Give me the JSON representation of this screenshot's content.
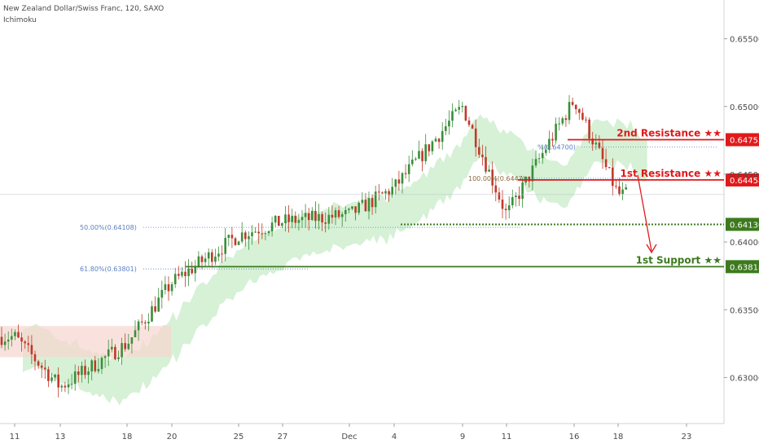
{
  "header": {
    "title": "New Zealand Dollar/Swiss Franc, 120, SAXO",
    "indicator": "Ichimoku"
  },
  "colors": {
    "up": "#3a8f3a",
    "down": "#c0392b",
    "resistance": "#e0191b",
    "support": "#3d7a1e",
    "fib": "#5b7fc4",
    "cloud_bull": "#c8ecc8",
    "cloud_bear": "#f6d5cf"
  },
  "chart_data": {
    "type": "candlestick",
    "ylim": [
      0.6275,
      0.6575
    ],
    "y_ticks": [
      "0.65500",
      "0.65000",
      "0.64500",
      "0.64000",
      "0.63500",
      "0.63000"
    ],
    "x_ticks": [
      "11",
      "13",
      "18",
      "20",
      "25",
      "27",
      "Dec",
      "4",
      "9",
      "11",
      "16",
      "18",
      "23"
    ],
    "price_levels": [
      {
        "name": "2nd Resistance ★★",
        "price_label": "0.64755",
        "value": 0.64755
      },
      {
        "name": "1st Resistance ★★",
        "price_label": "0.64458",
        "value": 0.64458
      },
      {
        "name": "",
        "price_label": "0.64130",
        "value": 0.6413
      },
      {
        "name": "1st Support ★★",
        "price_label": "0.63818",
        "value": 0.63818
      }
    ],
    "fib_labels": [
      {
        "text": "50.00%(0.64108)",
        "value": 0.64108
      },
      {
        "text": "61.80%(0.63801)",
        "value": 0.63801
      },
      {
        "text": "100.00%(0.6447)",
        "value": 0.6447
      },
      {
        "text": "%(0.64700)",
        "value": 0.647
      }
    ],
    "key_points": [
      [
        "11",
        0.633
      ],
      [
        "13",
        0.6293
      ],
      [
        "18",
        0.6325
      ],
      [
        "20",
        0.637
      ],
      [
        "25",
        0.6405
      ],
      [
        "27",
        0.6415
      ],
      [
        "Dec",
        0.642
      ],
      [
        "4",
        0.644
      ],
      [
        "9",
        0.65
      ],
      [
        "11",
        0.642
      ],
      [
        "16",
        0.6505
      ],
      [
        "18",
        0.6435
      ]
    ]
  }
}
